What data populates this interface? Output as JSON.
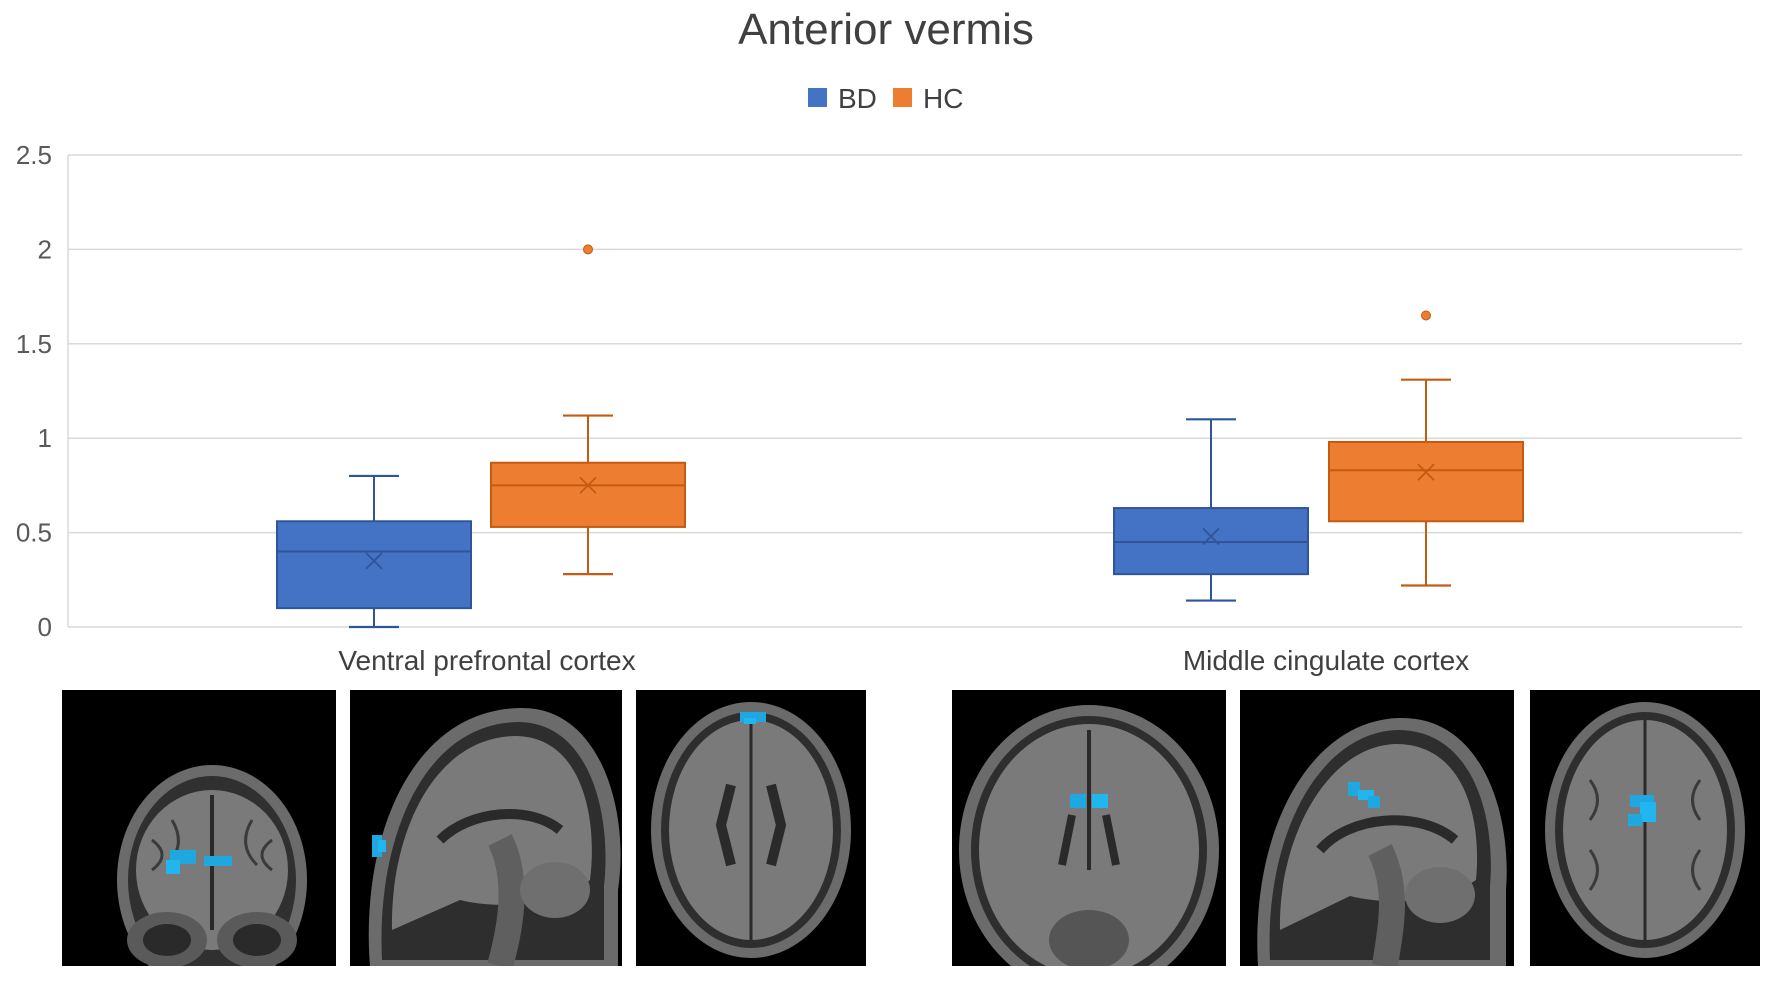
{
  "chart_data": {
    "type": "box",
    "title": "Anterior vermis",
    "legend": {
      "placement": "top",
      "entries": [
        "BD",
        "HC"
      ]
    },
    "colors": {
      "BD": "#4472C4",
      "HC": "#ED7D31",
      "BD_edge": "#2F5597",
      "HC_edge": "#C55A11",
      "grid": "#d9d9d9"
    },
    "yaxis": {
      "min": 0,
      "max": 2.5,
      "ticks": [
        "0",
        "0.5",
        "1",
        "1.5",
        "2",
        "2.5"
      ],
      "tick_values": [
        0,
        0.5,
        1,
        1.5,
        2,
        2.5
      ]
    },
    "grid": true,
    "categories": [
      "Ventral prefrontal cortex",
      "Middle cingulate cortex"
    ],
    "series": [
      {
        "name": "BD",
        "boxes": [
          {
            "min": 0.0,
            "q1": 0.1,
            "median": 0.4,
            "q3": 0.56,
            "max": 0.8,
            "mean": 0.35,
            "outliers": []
          },
          {
            "min": 0.14,
            "q1": 0.28,
            "median": 0.45,
            "q3": 0.63,
            "max": 1.1,
            "mean": 0.48,
            "outliers": []
          }
        ]
      },
      {
        "name": "HC",
        "boxes": [
          {
            "min": 0.28,
            "q1": 0.53,
            "median": 0.75,
            "q3": 0.87,
            "max": 1.12,
            "mean": 0.75,
            "outliers": [
              2.0
            ]
          },
          {
            "min": 0.22,
            "q1": 0.56,
            "median": 0.83,
            "q3": 0.98,
            "max": 1.31,
            "mean": 0.82,
            "outliers": [
              1.65
            ]
          }
        ]
      }
    ]
  },
  "brain_images": [
    {
      "view": "coronal",
      "group": "Ventral prefrontal cortex"
    },
    {
      "view": "sagittal",
      "group": "Ventral prefrontal cortex"
    },
    {
      "view": "axial",
      "group": "Ventral prefrontal cortex"
    },
    {
      "view": "coronal",
      "group": "Middle cingulate cortex"
    },
    {
      "view": "sagittal",
      "group": "Middle cingulate cortex"
    },
    {
      "view": "axial",
      "group": "Middle cingulate cortex"
    }
  ]
}
